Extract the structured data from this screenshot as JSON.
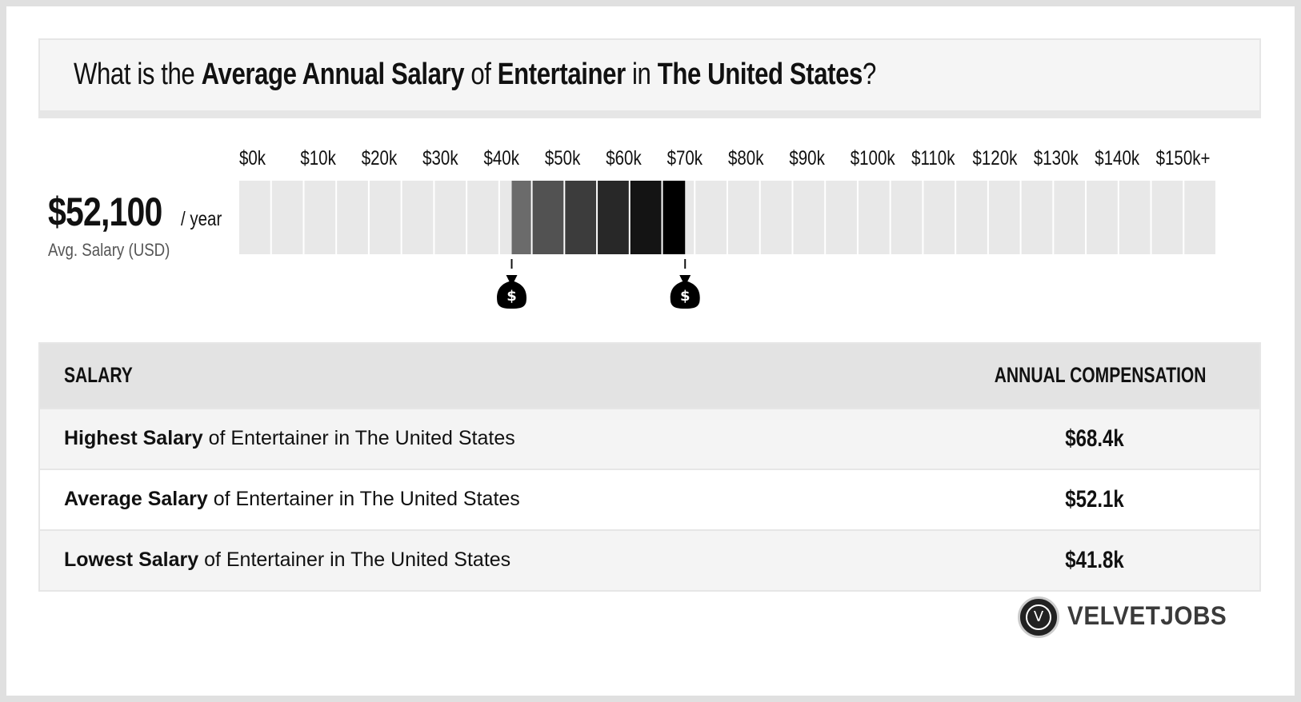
{
  "header": {
    "q_prefix": "What is the ",
    "q_metric": "Average Annual Salary",
    "q_of": " of ",
    "q_job": "Entertainer",
    "q_in": " in ",
    "q_location": "The United States",
    "q_suffix": "?"
  },
  "summary": {
    "value": "$52,100",
    "unit": "/ year",
    "caption": "Avg. Salary (USD)"
  },
  "chart_data": {
    "type": "bar",
    "tick_labels": [
      "$0k",
      "$10k",
      "$20k",
      "$30k",
      "$40k",
      "$50k",
      "$60k",
      "$70k",
      "$80k",
      "$90k",
      "$100k",
      "$110k",
      "$120k",
      "$130k",
      "$140k",
      "$150k+"
    ],
    "x_range": [
      0,
      150
    ],
    "x_unit": "k USD",
    "range_low": 41.8,
    "range_high": 68.4,
    "average": 52.1,
    "range_colors": [
      "#6b6b6b",
      "#525252",
      "#3c3c3c",
      "#282828",
      "#141414",
      "#000000"
    ],
    "base_color": "#e8e8e8",
    "marker_icon": "money-bag-icon"
  },
  "table": {
    "col_left": "SALARY",
    "col_right": "ANNUAL COMPENSATION",
    "rows": [
      {
        "bold": "Highest Salary",
        "rest": " of Entertainer in The United States",
        "value": "$68.4k"
      },
      {
        "bold": "Average Salary",
        "rest": " of Entertainer in The United States",
        "value": "$52.1k"
      },
      {
        "bold": "Lowest Salary",
        "rest": " of Entertainer in The United States",
        "value": "$41.8k"
      }
    ]
  },
  "logo": {
    "letter": "V",
    "name": "VELVETJOBS"
  }
}
